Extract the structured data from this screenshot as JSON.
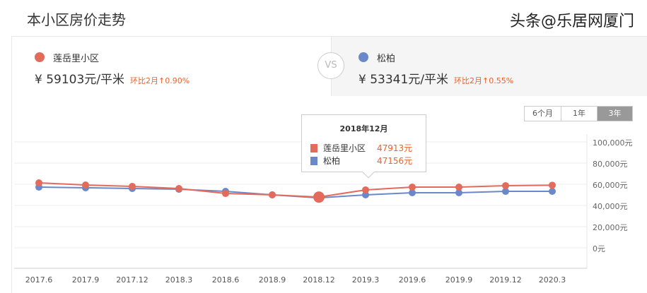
{
  "title": "本小区房价走势",
  "left": {
    "name": "莲岳里小区",
    "currency": "¥",
    "price": "59103元/平米",
    "change": "环比2月↑0.90%",
    "color": "#e36b5b"
  },
  "vs": "VS",
  "right": {
    "name": "松柏",
    "currency": "¥",
    "price": "53341元/平米",
    "change": "环比2月↑0.55%",
    "color": "#6b88c9"
  },
  "range_buttons": [
    {
      "label": "6个月",
      "active": false
    },
    {
      "label": "1年",
      "active": false
    },
    {
      "label": "3年",
      "active": true
    }
  ],
  "tooltip": {
    "title": "2018年12月",
    "rows": [
      {
        "name": "莲岳里小区",
        "value": "47913元"
      },
      {
        "name": "松柏",
        "value": "47156元"
      }
    ]
  },
  "watermark": "头条@乐居网厦门",
  "chart_data": {
    "type": "line",
    "x": [
      "2017.6",
      "2017.9",
      "2017.12",
      "2018.3",
      "2018.6",
      "2018.9",
      "2018.12",
      "2019.3",
      "2019.6",
      "2019.9",
      "2019.12",
      "2020.3"
    ],
    "ylim": [
      0,
      100000
    ],
    "yticks": [
      "0元",
      "20,000元",
      "40,000元",
      "60,000元",
      "80,000元",
      "100,000元"
    ],
    "grid": true,
    "highlight_index": 6,
    "series": [
      {
        "name": "莲岳里小区",
        "color": "#e36b5b",
        "values": [
          61300,
          59300,
          58000,
          56000,
          51300,
          50000,
          47913,
          54700,
          57300,
          57300,
          58700,
          59103
        ]
      },
      {
        "name": "松柏",
        "color": "#6b88c9",
        "values": [
          57300,
          56700,
          56000,
          55300,
          53300,
          50000,
          47156,
          50000,
          52000,
          52000,
          53300,
          53341
        ]
      }
    ]
  }
}
